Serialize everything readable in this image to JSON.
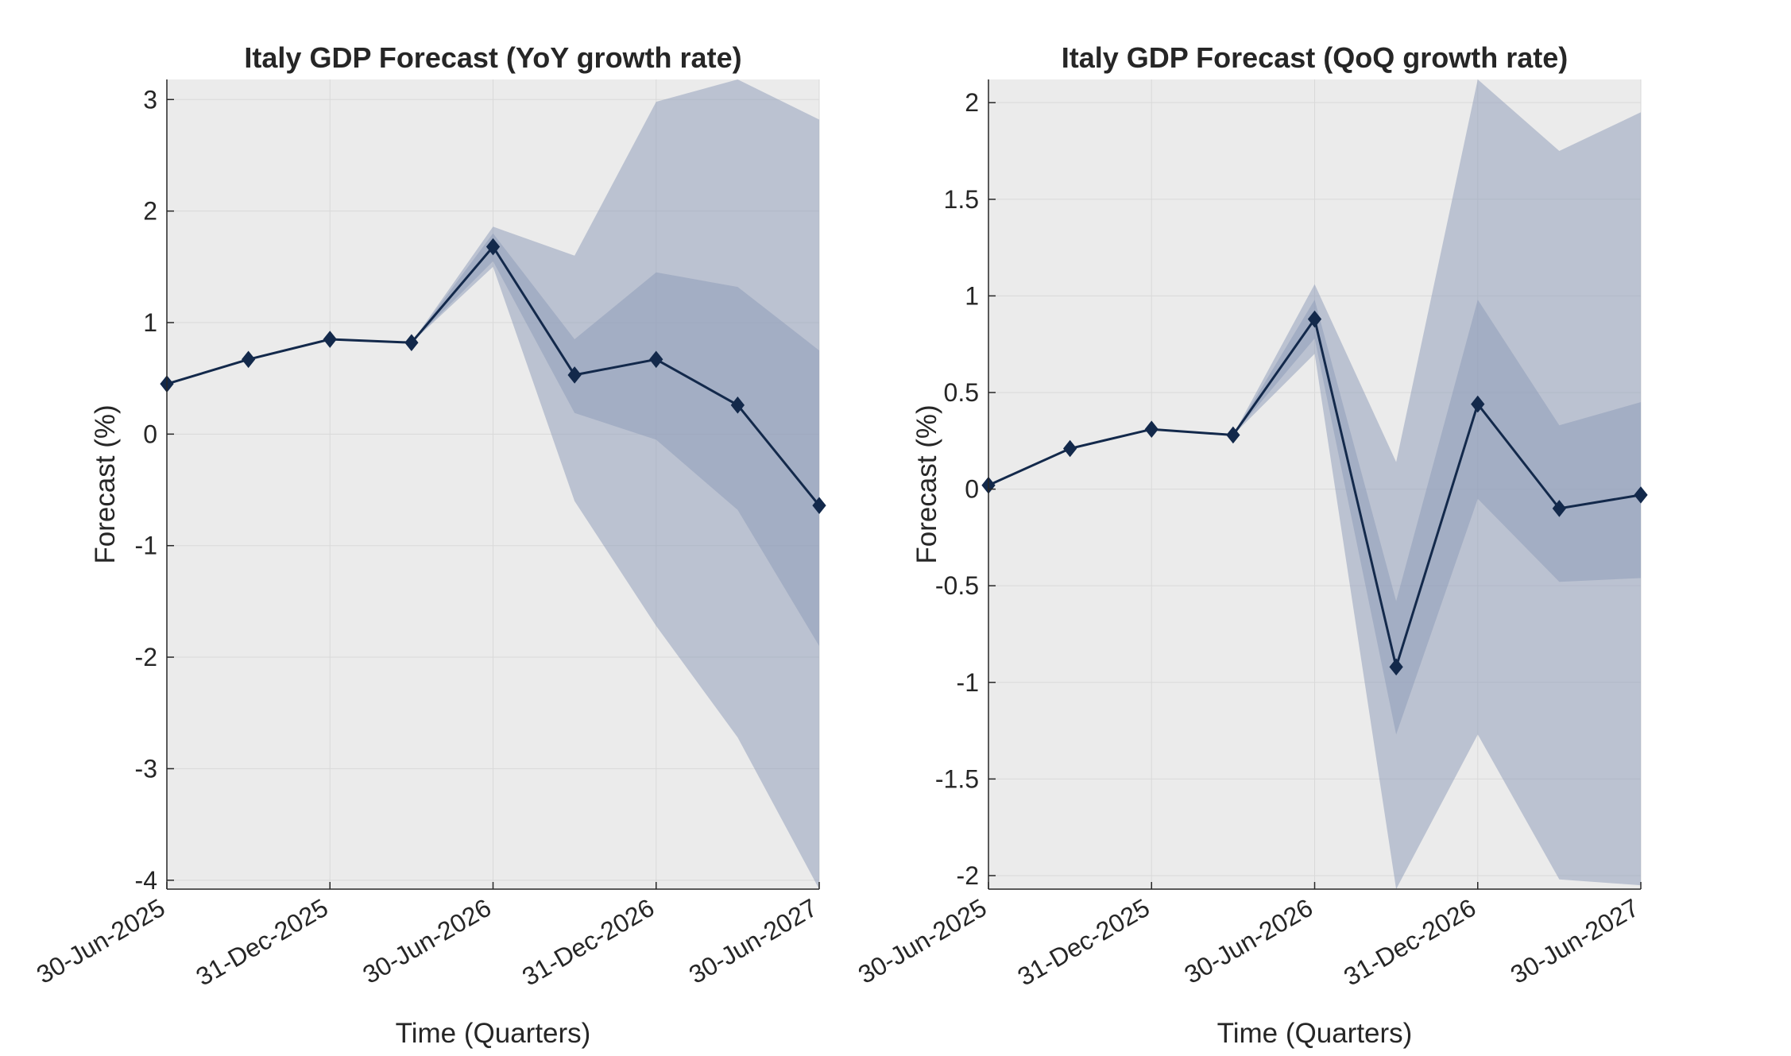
{
  "chart_data": [
    {
      "type": "line",
      "title": "Italy GDP Forecast (YoY growth rate)",
      "xlabel": "Time (Quarters)",
      "ylabel": "Forecast (%)",
      "x": [
        "30-Jun-2025",
        "30-Sep-2025",
        "31-Dec-2025",
        "31-Mar-2026",
        "30-Jun-2026",
        "30-Sep-2026",
        "31-Dec-2026",
        "31-Mar-2027",
        "30-Jun-2027"
      ],
      "x_tick_labels": [
        "30-Jun-2025",
        "31-Dec-2025",
        "30-Jun-2026",
        "31-Dec-2026",
        "30-Jun-2027"
      ],
      "ylim": [
        -4.08,
        3.18
      ],
      "yticks": [
        -4,
        -3,
        -2,
        -1,
        0,
        1,
        2,
        3
      ],
      "grid": true,
      "series": [
        {
          "values": [
            0.45,
            0.67,
            0.85,
            0.82,
            1.68,
            0.53,
            0.67,
            0.26,
            -0.64
          ],
          "color": "#13294b",
          "marker": "diamond"
        }
      ],
      "bands": [
        {
          "role": "outer",
          "color": "#8c9ab8",
          "upper": [
            0.45,
            0.67,
            0.85,
            0.82,
            1.86,
            1.6,
            2.98,
            3.18,
            2.82
          ],
          "lower": [
            0.45,
            0.67,
            0.85,
            0.82,
            1.5,
            -0.6,
            -1.72,
            -2.72,
            -4.08
          ]
        },
        {
          "role": "inner",
          "color": "#8c9ab8",
          "upper": [
            0.45,
            0.67,
            0.85,
            0.82,
            1.8,
            0.85,
            1.45,
            1.32,
            0.75
          ],
          "lower": [
            0.45,
            0.67,
            0.85,
            0.82,
            1.55,
            0.19,
            -0.05,
            -0.68,
            -1.9
          ]
        }
      ]
    },
    {
      "type": "line",
      "title": "Italy GDP Forecast (QoQ growth rate)",
      "xlabel": "Time (Quarters)",
      "ylabel": "Forecast (%)",
      "x": [
        "30-Jun-2025",
        "30-Sep-2025",
        "31-Dec-2025",
        "31-Mar-2026",
        "30-Jun-2026",
        "30-Sep-2026",
        "31-Dec-2026",
        "31-Mar-2027",
        "30-Jun-2027"
      ],
      "x_tick_labels": [
        "30-Jun-2025",
        "31-Dec-2025",
        "30-Jun-2026",
        "31-Dec-2026",
        "30-Jun-2027"
      ],
      "ylim": [
        -2.07,
        2.12
      ],
      "yticks": [
        -2,
        -1.5,
        -1,
        -0.5,
        0,
        0.5,
        1,
        1.5,
        2
      ],
      "grid": true,
      "series": [
        {
          "values": [
            0.02,
            0.21,
            0.31,
            0.28,
            0.88,
            -0.92,
            0.44,
            -0.1,
            -0.03
          ],
          "color": "#13294b",
          "marker": "diamond"
        }
      ],
      "bands": [
        {
          "role": "outer",
          "color": "#8c9ab8",
          "upper": [
            0.02,
            0.21,
            0.31,
            0.28,
            1.06,
            0.14,
            2.12,
            1.75,
            1.95
          ],
          "lower": [
            0.02,
            0.21,
            0.31,
            0.28,
            0.7,
            -2.07,
            -1.27,
            -2.02,
            -2.05
          ]
        },
        {
          "role": "inner",
          "color": "#8c9ab8",
          "upper": [
            0.02,
            0.21,
            0.31,
            0.28,
            0.98,
            -0.58,
            0.98,
            0.33,
            0.45
          ],
          "lower": [
            0.02,
            0.21,
            0.31,
            0.28,
            0.78,
            -1.27,
            -0.05,
            -0.48,
            -0.46
          ]
        }
      ]
    }
  ]
}
